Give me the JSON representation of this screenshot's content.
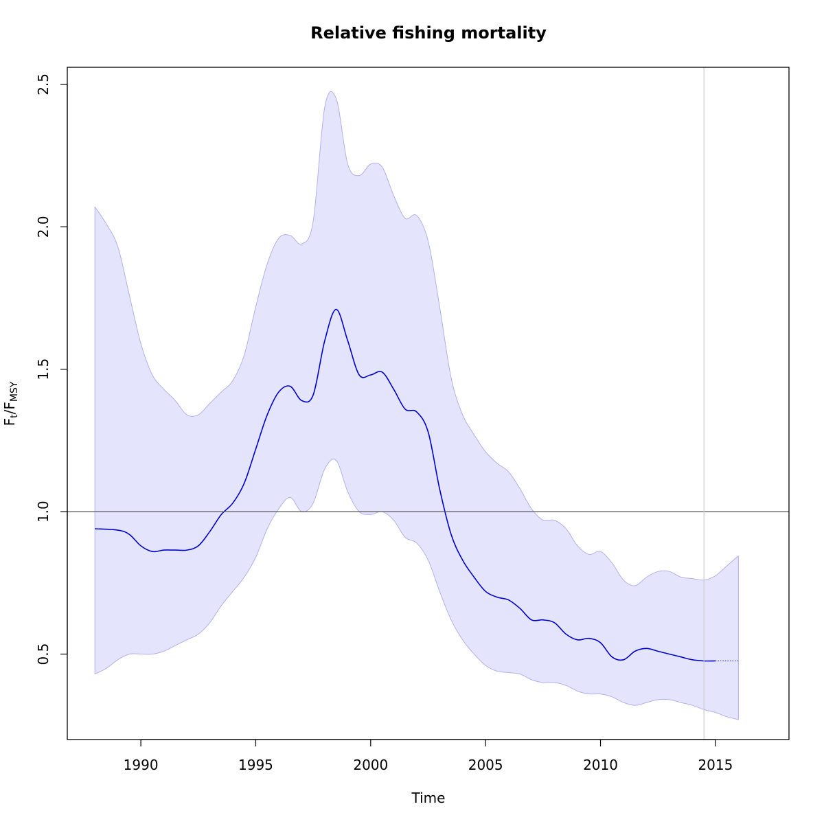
{
  "chart_data": {
    "type": "area",
    "title": "Relative fishing mortality",
    "xlabel": "Time",
    "ylabel": {
      "main_num": "F",
      "sub_num": "t",
      "sep": "/",
      "main_den": "F",
      "sub_den": "MSY"
    },
    "xlim": [
      1986.8,
      2018.2
    ],
    "ylim": [
      0.2,
      2.56
    ],
    "x_ticks": [
      1990,
      1995,
      2000,
      2005,
      2010,
      2015
    ],
    "y_ticks": [
      0.5,
      1.0,
      1.5,
      2.0,
      2.5
    ],
    "x_tick_labels": [
      "1990",
      "1995",
      "2000",
      "2005",
      "2010",
      "2015"
    ],
    "y_tick_labels": [
      "0.5",
      "1.0",
      "1.5",
      "2.0",
      "2.5"
    ],
    "grid": false,
    "reference_line_y": 1.0,
    "vertical_line_x": 2014.5,
    "colors": {
      "line": "#0000cd",
      "band_fill": "#e4e4fc",
      "band_edge": "#b0b0f0",
      "ref_line": "#555555",
      "vline": "#cccccc"
    },
    "estimate": {
      "x": [
        1988,
        1989,
        1989.5,
        1990,
        1990.5,
        1991,
        1991.5,
        1992,
        1992.5,
        1993,
        1993.5,
        1994,
        1994.5,
        1995,
        1995.5,
        1996,
        1996.5,
        1997,
        1997.5,
        1998,
        1998.5,
        1999,
        1999.5,
        2000,
        2000.5,
        2001,
        2001.5,
        2002,
        2002.5,
        2003,
        2003.5,
        2004,
        2004.5,
        2005,
        2005.5,
        2006,
        2006.5,
        2007,
        2007.5,
        2008,
        2008.5,
        2009,
        2009.5,
        2010,
        2010.5,
        2011,
        2011.5,
        2012,
        2012.5,
        2013,
        2013.5,
        2014,
        2014.5,
        2015
      ],
      "y": [
        0.94,
        0.935,
        0.92,
        0.88,
        0.86,
        0.865,
        0.865,
        0.865,
        0.88,
        0.93,
        0.99,
        1.03,
        1.1,
        1.22,
        1.34,
        1.42,
        1.44,
        1.39,
        1.41,
        1.6,
        1.71,
        1.6,
        1.48,
        1.48,
        1.49,
        1.43,
        1.36,
        1.35,
        1.28,
        1.08,
        0.92,
        0.83,
        0.77,
        0.72,
        0.7,
        0.69,
        0.66,
        0.62,
        0.62,
        0.61,
        0.57,
        0.55,
        0.555,
        0.54,
        0.49,
        0.48,
        0.51,
        0.52,
        0.51,
        0.5,
        0.49,
        0.48,
        0.476,
        0.476
      ]
    },
    "projection": {
      "x": [
        2015,
        2016
      ],
      "y": [
        0.476,
        0.476
      ]
    },
    "ci_upper": {
      "x": [
        1988,
        1988.5,
        1989,
        1989.5,
        1990,
        1990.5,
        1991,
        1991.5,
        1992,
        1992.5,
        1993,
        1993.5,
        1994,
        1994.5,
        1995,
        1995.5,
        1996,
        1996.5,
        1997,
        1997.5,
        1998,
        1998.5,
        1999,
        1999.5,
        2000,
        2000.5,
        2001,
        2001.5,
        2002,
        2002.5,
        2003,
        2003.5,
        2004,
        2004.5,
        2005,
        2005.5,
        2006,
        2006.5,
        2007,
        2007.5,
        2008,
        2008.5,
        2009,
        2009.5,
        2010,
        2010.5,
        2011,
        2011.5,
        2012,
        2012.5,
        2013,
        2013.5,
        2014,
        2014.5,
        2015,
        2015.5,
        2016
      ],
      "y": [
        2.07,
        2.01,
        1.93,
        1.76,
        1.59,
        1.48,
        1.43,
        1.39,
        1.34,
        1.34,
        1.38,
        1.42,
        1.46,
        1.55,
        1.72,
        1.87,
        1.96,
        1.97,
        1.94,
        2.02,
        2.42,
        2.45,
        2.22,
        2.18,
        2.22,
        2.21,
        2.11,
        2.03,
        2.04,
        1.95,
        1.72,
        1.47,
        1.34,
        1.27,
        1.21,
        1.17,
        1.14,
        1.08,
        1.01,
        0.97,
        0.97,
        0.94,
        0.88,
        0.85,
        0.86,
        0.82,
        0.76,
        0.74,
        0.77,
        0.79,
        0.79,
        0.77,
        0.765,
        0.76,
        0.775,
        0.81,
        0.845
      ]
    },
    "ci_lower": {
      "x": [
        1988,
        1988.5,
        1989,
        1989.5,
        1990,
        1990.5,
        1991,
        1991.5,
        1992,
        1992.5,
        1993,
        1993.5,
        1994,
        1994.5,
        1995,
        1995.5,
        1996,
        1996.5,
        1997,
        1997.5,
        1998,
        1998.5,
        1999,
        1999.5,
        2000,
        2000.5,
        2001,
        2001.5,
        2002,
        2002.5,
        2003,
        2003.5,
        2004,
        2004.5,
        2005,
        2005.5,
        2006,
        2006.5,
        2007,
        2007.5,
        2008,
        2008.5,
        2009,
        2009.5,
        2010,
        2010.5,
        2011,
        2011.5,
        2012,
        2012.5,
        2013,
        2013.5,
        2014,
        2014.5,
        2015,
        2015.5,
        2016
      ],
      "y": [
        0.43,
        0.45,
        0.48,
        0.5,
        0.5,
        0.5,
        0.51,
        0.53,
        0.55,
        0.57,
        0.61,
        0.67,
        0.72,
        0.77,
        0.84,
        0.94,
        1.01,
        1.05,
        1.0,
        1.03,
        1.15,
        1.18,
        1.07,
        1.0,
        0.99,
        1.0,
        0.97,
        0.91,
        0.89,
        0.83,
        0.72,
        0.62,
        0.55,
        0.5,
        0.46,
        0.44,
        0.435,
        0.43,
        0.41,
        0.4,
        0.4,
        0.39,
        0.37,
        0.36,
        0.36,
        0.35,
        0.33,
        0.32,
        0.33,
        0.34,
        0.34,
        0.33,
        0.32,
        0.305,
        0.295,
        0.28,
        0.27
      ]
    }
  }
}
